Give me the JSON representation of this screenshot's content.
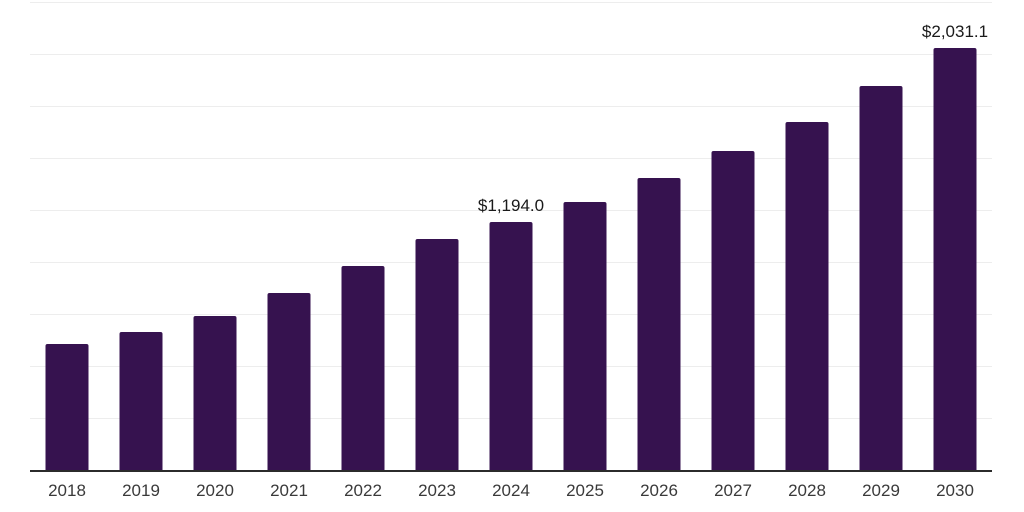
{
  "chart_data": {
    "type": "bar",
    "title": "",
    "xlabel": "",
    "ylabel": "",
    "categories": [
      "2018",
      "2019",
      "2020",
      "2021",
      "2022",
      "2023",
      "2024",
      "2025",
      "2026",
      "2027",
      "2028",
      "2029",
      "2030"
    ],
    "values": [
      606,
      665,
      740,
      853,
      981,
      1111,
      1194.0,
      1290,
      1406,
      1532,
      1675,
      1844,
      2031.1
    ],
    "labeled_points": [
      {
        "category": "2024",
        "label": "$1,194.0"
      },
      {
        "category": "2030",
        "label": "$2,031.1"
      }
    ],
    "ylim": [
      0,
      2250
    ],
    "grid_interval": 250,
    "grid": "horizontal-light",
    "legend": "none",
    "bar_color": "#36124F",
    "axis_line_color": "#2b2b2b",
    "gridline_color": "#ededed",
    "tick_label_color": "#3a3a3a",
    "value_label_color": "#1a1a1a"
  }
}
